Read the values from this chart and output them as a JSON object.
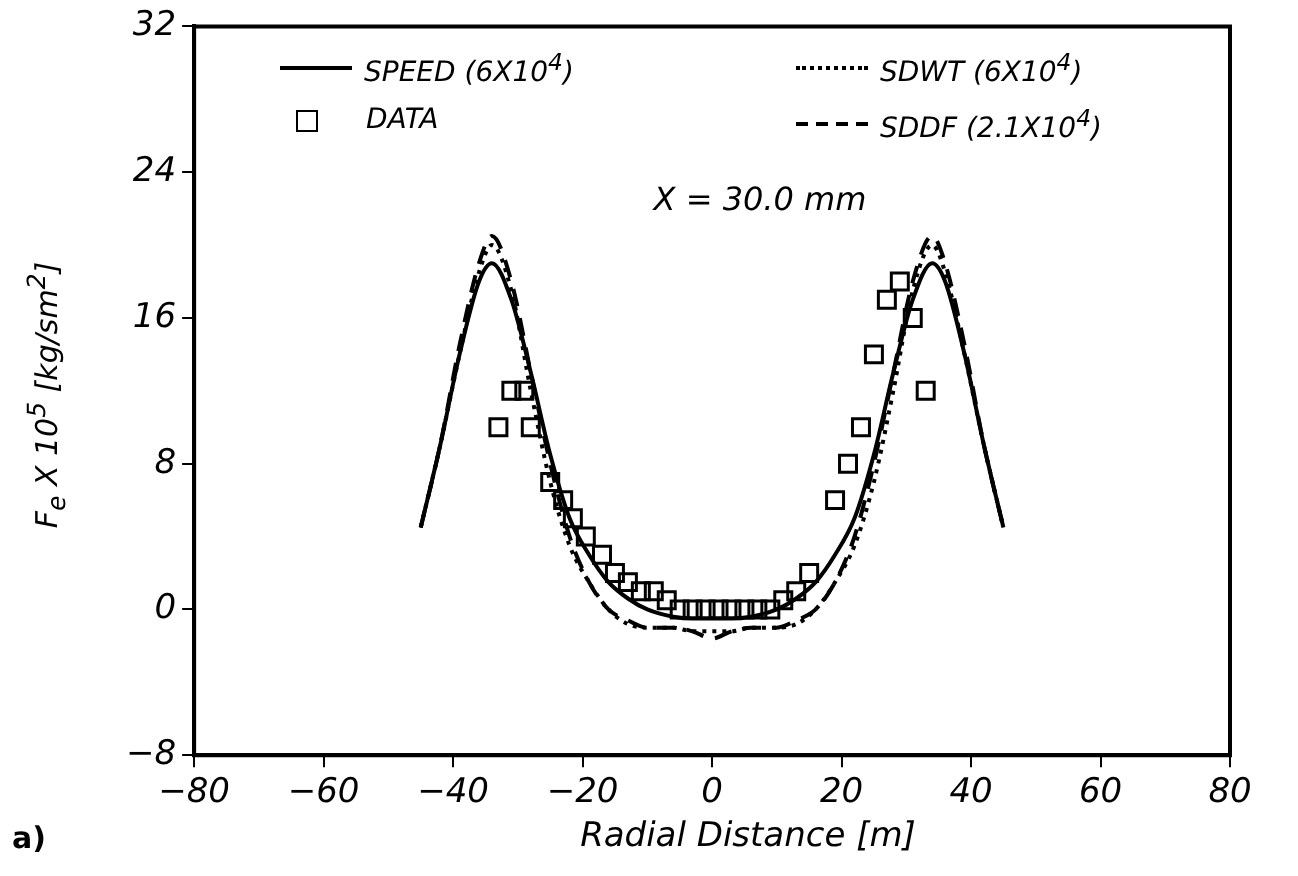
{
  "chart_data": {
    "type": "line",
    "xlabel": "Radial Distance [m]",
    "ylabel": "F$_{e}$ X 10$^{5}$ [kg/sm$^{2}$]",
    "xlim": [
      -80,
      80
    ],
    "xticks": [
      -80,
      -60,
      -40,
      -20,
      0,
      20,
      40,
      60,
      80
    ],
    "ylim": [
      -8,
      32
    ],
    "yticks": [
      -8,
      0,
      8,
      16,
      24,
      32
    ],
    "grid": false,
    "legend": "top",
    "annotations": [
      "X =  30.0 mm",
      "a)"
    ],
    "series": [
      {
        "name": "SPEED (6X10$^{4}$)",
        "type": "line",
        "line_style": "solid",
        "marker": "none",
        "color": "#000000",
        "x": [
          -45,
          -42,
          -39,
          -36,
          -34,
          -31,
          -28,
          -25,
          -22,
          -19,
          -16,
          -13,
          -10,
          -6,
          -3,
          0,
          3,
          6,
          10,
          13,
          16,
          19,
          22,
          25,
          28,
          31,
          34,
          36,
          39,
          42,
          45
        ],
        "values": [
          4.5,
          9,
          14,
          18,
          19,
          17,
          13,
          8.5,
          5,
          3,
          1.5,
          0.6,
          0,
          -0.4,
          -0.5,
          -0.5,
          -0.5,
          -0.4,
          0,
          0.6,
          1.5,
          3,
          5,
          8.5,
          13,
          17,
          19,
          18,
          14,
          9,
          4.5
        ]
      },
      {
        "name": "SDWT (6X10$^{4}$)",
        "type": "line",
        "line_style": "dotted",
        "marker": "none",
        "color": "#000000",
        "x": [
          -45,
          -42,
          -39,
          -36,
          -34,
          -31,
          -28,
          -25,
          -22,
          -19,
          -16,
          -13,
          -10,
          -6,
          -3,
          0,
          3,
          6,
          10,
          13,
          16,
          19,
          22,
          25,
          28,
          31,
          34,
          36,
          39,
          42,
          45
        ],
        "values": [
          4.5,
          9,
          14,
          18.5,
          20,
          17.5,
          12,
          7,
          3.5,
          1.5,
          0,
          -0.8,
          -1,
          -1,
          -1.2,
          -1.2,
          -1.2,
          -1,
          -1,
          -0.8,
          0,
          1.5,
          3.5,
          7,
          12,
          17.5,
          20,
          18.5,
          14,
          9,
          4.5
        ]
      },
      {
        "name": "SDDF (2.1X10$^{4}$)",
        "type": "line",
        "line_style": "dashed",
        "marker": "none",
        "color": "#000000",
        "x": [
          -45,
          -42,
          -39,
          -36,
          -34,
          -31,
          -28,
          -25,
          -22,
          -19,
          -16,
          -13,
          -10,
          -6,
          -3,
          0,
          3,
          6,
          10,
          13,
          16,
          19,
          22,
          25,
          28,
          31,
          34,
          36,
          39,
          42,
          45
        ],
        "values": [
          4.5,
          9,
          14.5,
          19,
          20.5,
          18,
          13,
          8,
          4,
          1.5,
          0,
          -0.6,
          -1,
          -1,
          -1.2,
          -1.6,
          -1.2,
          -1,
          -1,
          -0.6,
          0,
          1.5,
          4,
          8,
          13,
          18,
          20.5,
          19,
          14.5,
          9,
          4.5
        ]
      },
      {
        "name": "DATA",
        "type": "scatter",
        "marker": "square",
        "color": "#000000",
        "x": [
          -33,
          -31,
          -29,
          -28,
          -25,
          -23,
          -21.5,
          -19.5,
          -17,
          -15,
          -13,
          -11,
          -9,
          -7,
          -5,
          -3,
          -1,
          1,
          3,
          5,
          7,
          9,
          11,
          13,
          15,
          19,
          21,
          23,
          25,
          27,
          29,
          31,
          33
        ],
        "values": [
          10,
          12,
          12,
          10,
          7,
          6,
          5,
          4,
          3,
          2,
          1.5,
          1,
          1,
          0.5,
          0,
          0,
          0,
          0,
          0,
          0,
          0,
          0,
          0.5,
          1,
          2,
          6,
          8,
          10,
          14,
          17,
          18,
          16,
          12
        ]
      }
    ]
  }
}
